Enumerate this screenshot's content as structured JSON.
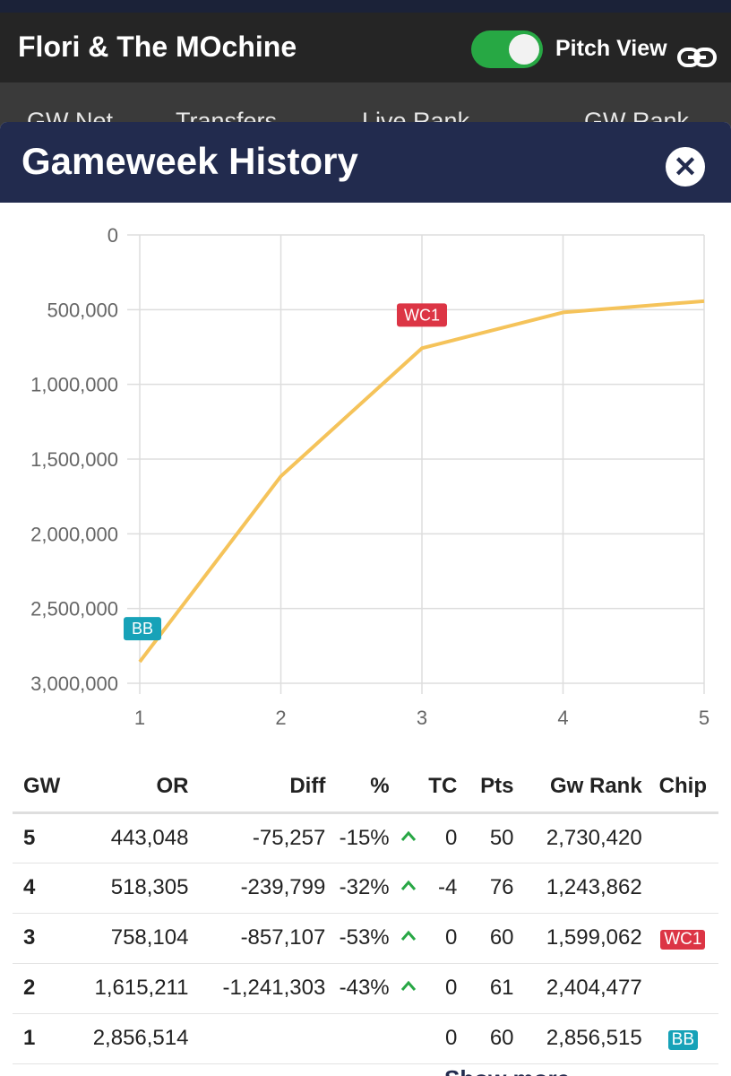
{
  "app": {
    "title": "Flori & The MOchine",
    "pitch_view_label": "Pitch View",
    "pitch_view_on": true
  },
  "behind_tabs": [
    "GW Net",
    "Transfers",
    "Live Rank",
    "GW Rank"
  ],
  "modal": {
    "title": "Gameweek History",
    "close_icon": "close-icon"
  },
  "colors": {
    "header": "#222b4e",
    "line": "#f5c35a",
    "wildcard": "#dc3545",
    "bench_boost": "#17a2b8",
    "toggle": "#27a844",
    "arrow_up": "#28a745"
  },
  "chart_data": {
    "type": "line",
    "x": [
      1,
      2,
      3,
      4,
      5
    ],
    "y": [
      2856514,
      1615211,
      758104,
      518305,
      443048
    ],
    "x_ticks": [
      "1",
      "2",
      "3",
      "4",
      "5"
    ],
    "y_ticks": [
      "0",
      "500,000",
      "1,000,000",
      "1,500,000",
      "2,000,000",
      "2,500,000",
      "3,000,000"
    ],
    "ylim": [
      0,
      3000000
    ],
    "y_reversed": true,
    "grid": true,
    "annotations": [
      {
        "x": 1,
        "label": "BB",
        "color": "#17a2b8"
      },
      {
        "x": 3,
        "label": "WC1",
        "color": "#dc3545"
      }
    ]
  },
  "table": {
    "headers": {
      "gw": "GW",
      "or": "OR",
      "diff": "Diff",
      "pct": "%",
      "tc": "TC",
      "pts": "Pts",
      "rank": "Gw Rank",
      "chip": "Chip"
    },
    "rows": [
      {
        "gw": "5",
        "or": "443,048",
        "diff": "-75,257",
        "pct": "-15%",
        "arrow": "up",
        "tc": "0",
        "pts": "50",
        "rank": "2,730,420",
        "chip": ""
      },
      {
        "gw": "4",
        "or": "518,305",
        "diff": "-239,799",
        "pct": "-32%",
        "arrow": "up",
        "tc": "-4",
        "pts": "76",
        "rank": "1,243,862",
        "chip": ""
      },
      {
        "gw": "3",
        "or": "758,104",
        "diff": "-857,107",
        "pct": "-53%",
        "arrow": "up",
        "tc": "0",
        "pts": "60",
        "rank": "1,599,062",
        "chip": "WC1"
      },
      {
        "gw": "2",
        "or": "1,615,211",
        "diff": "-1,241,303",
        "pct": "-43%",
        "arrow": "up",
        "tc": "0",
        "pts": "61",
        "rank": "2,404,477",
        "chip": ""
      },
      {
        "gw": "1",
        "or": "2,856,514",
        "diff": "",
        "pct": "",
        "arrow": "",
        "tc": "0",
        "pts": "60",
        "rank": "2,856,515",
        "chip": "BB"
      }
    ]
  },
  "footer": {
    "link_label": "Show more"
  }
}
